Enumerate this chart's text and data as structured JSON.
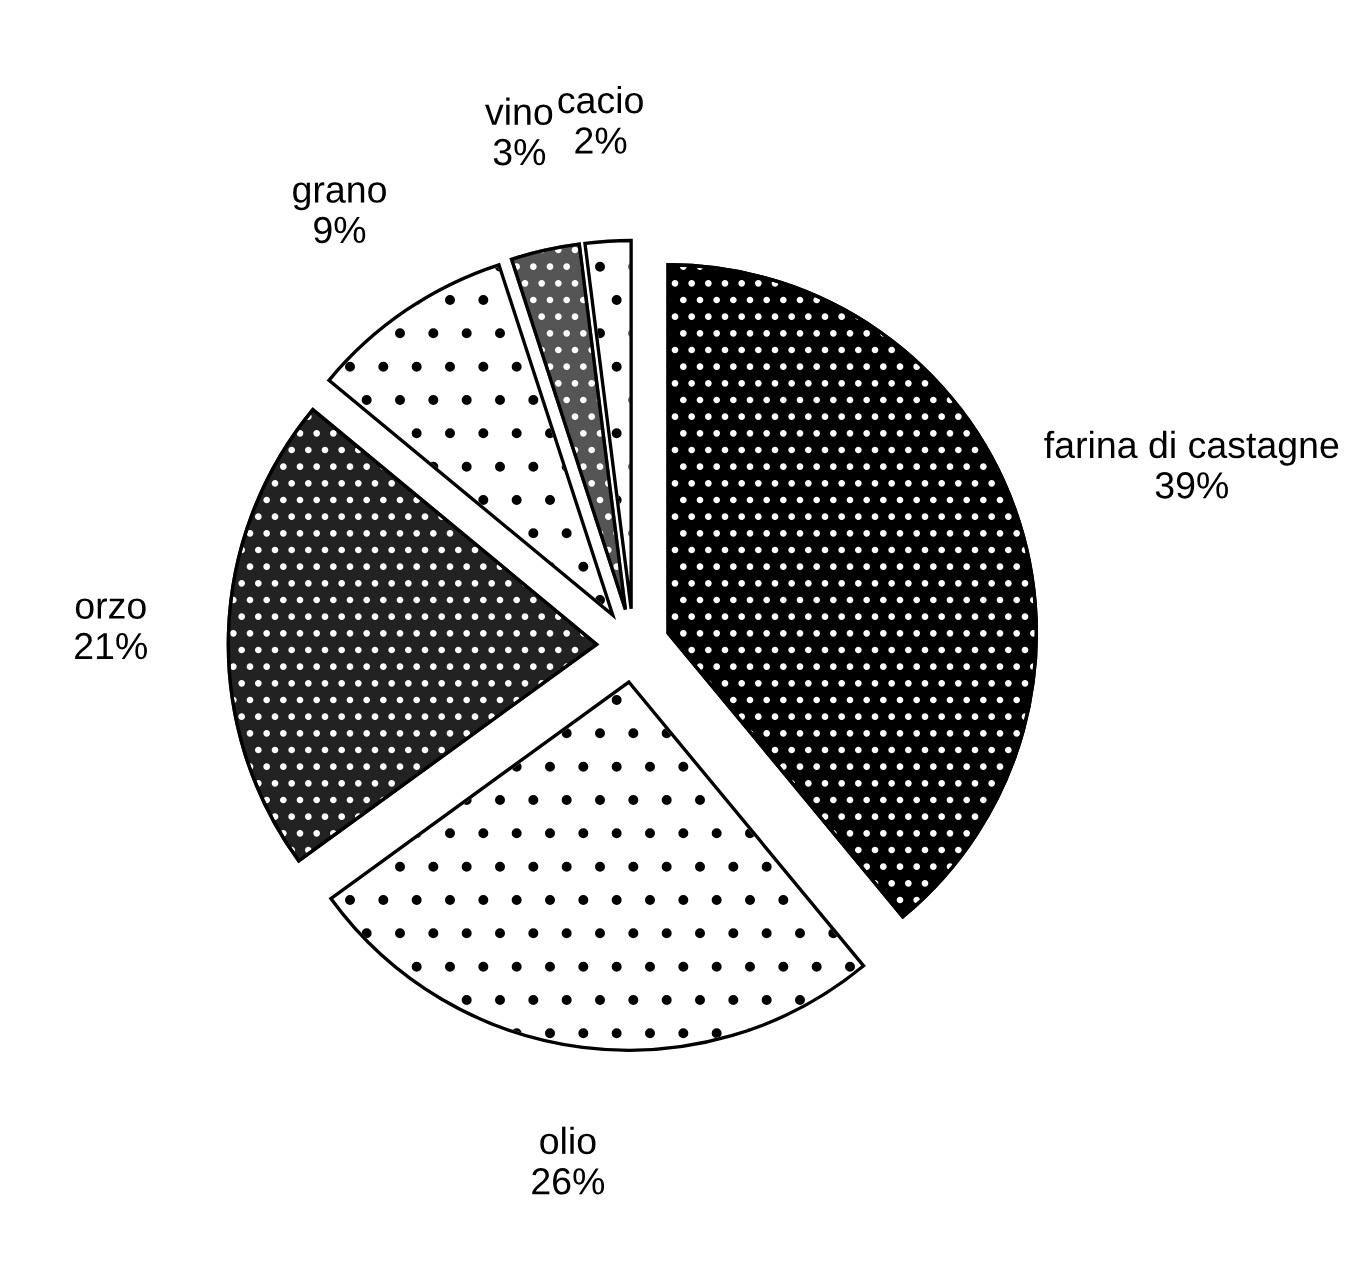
{
  "chart_data": {
    "type": "pie",
    "categories": [
      "farina di castagne",
      "olio",
      "orzo",
      "grano",
      "vino",
      "cacio"
    ],
    "values": [
      39,
      26,
      21,
      9,
      3,
      2
    ],
    "value_labels": [
      "39%",
      "26%",
      "21%",
      "9%",
      "3%",
      "2%"
    ],
    "colors": [
      "#000000",
      "#ffffff",
      "#222222",
      "#ffffff",
      "#555555",
      "#ffffff"
    ],
    "legend": false
  }
}
